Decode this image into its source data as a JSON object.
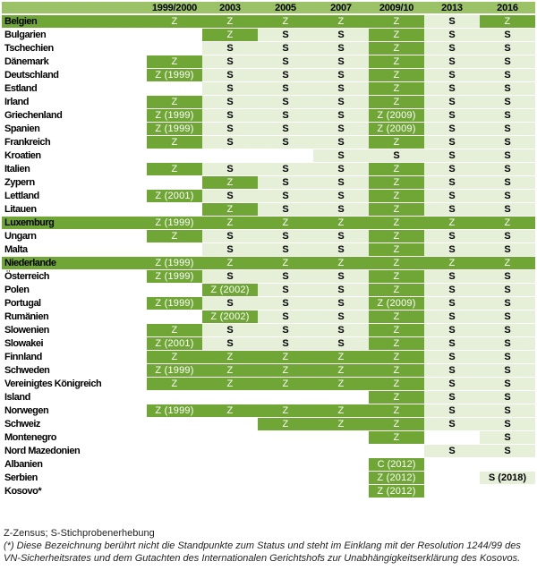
{
  "table": {
    "header": [
      "",
      "1999/2000",
      "2003",
      "2005",
      "2007",
      "2009/10",
      "2013",
      "2016"
    ],
    "rows": [
      {
        "country": "Belgien",
        "band": true,
        "cells": [
          "Z",
          "Z",
          "Z",
          "Z",
          "Z",
          "S",
          "Z"
        ]
      },
      {
        "country": "Bulgarien",
        "band": false,
        "cells": [
          "",
          "Z",
          "S",
          "S",
          "Z",
          "S",
          "S"
        ]
      },
      {
        "country": "Tschechien",
        "band": false,
        "cells": [
          "",
          "S",
          "S",
          "S",
          "Z",
          "S",
          "S"
        ]
      },
      {
        "country": "Dänemark",
        "band": false,
        "cells": [
          "Z",
          "S",
          "S",
          "S",
          "Z",
          "S",
          "S"
        ]
      },
      {
        "country": "Deutschland",
        "band": false,
        "cells": [
          "Z (1999)",
          "S",
          "S",
          "S",
          "Z",
          "S",
          "S"
        ]
      },
      {
        "country": "Estland",
        "band": false,
        "cells": [
          "",
          "S",
          "S",
          "S",
          "Z",
          "S",
          "S"
        ]
      },
      {
        "country": "Irland",
        "band": false,
        "cells": [
          "Z",
          "S",
          "S",
          "S",
          "Z",
          "S",
          "S"
        ]
      },
      {
        "country": "Griechenland",
        "band": false,
        "cells": [
          "Z (1999)",
          "S",
          "S",
          "S",
          "Z (2009)",
          "S",
          "S"
        ]
      },
      {
        "country": "Spanien",
        "band": false,
        "cells": [
          "Z (1999)",
          "S",
          "S",
          "S",
          "Z (2009)",
          "S",
          "S"
        ]
      },
      {
        "country": "Frankreich",
        "band": false,
        "cells": [
          "Z",
          "S",
          "S",
          "S",
          "Z",
          "S",
          "S"
        ]
      },
      {
        "country": "Kroatien",
        "band": false,
        "cells": [
          "",
          "",
          "",
          "S",
          "S",
          "S",
          "S"
        ]
      },
      {
        "country": "Italien",
        "band": false,
        "cells": [
          "Z",
          "S",
          "S",
          "S",
          "Z",
          "S",
          "S"
        ]
      },
      {
        "country": "Zypern",
        "band": false,
        "cells": [
          "",
          "Z",
          "S",
          "S",
          "Z",
          "S",
          "S"
        ]
      },
      {
        "country": "Lettland",
        "band": false,
        "cells": [
          "Z (2001)",
          "S",
          "S",
          "S",
          "Z",
          "S",
          "S"
        ]
      },
      {
        "country": "Litauen",
        "band": false,
        "cells": [
          "",
          "Z",
          "S",
          "S",
          "Z",
          "S",
          "S"
        ]
      },
      {
        "country": "Luxemburg",
        "band": true,
        "cells": [
          "Z (1999)",
          "Z",
          "Z",
          "Z",
          "Z",
          "Z",
          "Z"
        ]
      },
      {
        "country": "Ungarn",
        "band": false,
        "cells": [
          "Z",
          "S",
          "S",
          "S",
          "Z",
          "S",
          "S"
        ]
      },
      {
        "country": "Malta",
        "band": false,
        "cells": [
          "",
          "S",
          "S",
          "S",
          "Z",
          "S",
          "S"
        ]
      },
      {
        "country": "Niederlande",
        "band": true,
        "cells": [
          "Z (1999)",
          "Z",
          "Z",
          "Z",
          "Z",
          "Z",
          "Z"
        ]
      },
      {
        "country": "Österreich",
        "band": false,
        "cells": [
          "Z (1999)",
          "S",
          "S",
          "S",
          "Z",
          "S",
          "S"
        ]
      },
      {
        "country": "Polen",
        "band": false,
        "cells": [
          "",
          "Z (2002)",
          "S",
          "S",
          "Z",
          "S",
          "S"
        ]
      },
      {
        "country": "Portugal",
        "band": false,
        "cells": [
          "Z (1999)",
          "S",
          "S",
          "S",
          "Z (2009)",
          "S",
          "S"
        ]
      },
      {
        "country": "Rumänien",
        "band": false,
        "cells": [
          "",
          "Z (2002)",
          "S",
          "S",
          "Z",
          "S",
          "S"
        ]
      },
      {
        "country": "Slowenien",
        "band": false,
        "cells": [
          "Z",
          "S",
          "S",
          "S",
          "Z",
          "S",
          "S"
        ]
      },
      {
        "country": "Slowakei",
        "band": false,
        "cells": [
          "Z (2001)",
          "S",
          "S",
          "S",
          "Z",
          "S",
          "S"
        ]
      },
      {
        "country": "Finnland",
        "band": false,
        "cells": [
          "Z",
          "Z",
          "Z",
          "Z",
          "Z",
          "S",
          "S"
        ]
      },
      {
        "country": "Schweden",
        "band": false,
        "cells": [
          "Z (1999)",
          "Z",
          "Z",
          "Z",
          "Z",
          "S",
          "S"
        ]
      },
      {
        "country": "Vereinigtes Königreich",
        "band": false,
        "cells": [
          "Z",
          "Z",
          "Z",
          "Z",
          "Z",
          "S",
          "S"
        ]
      },
      {
        "country": "Island",
        "band": false,
        "cells": [
          "",
          "",
          "",
          "",
          "Z",
          "S",
          "S"
        ]
      },
      {
        "country": "Norwegen",
        "band": false,
        "cells": [
          "Z (1999)",
          "Z",
          "Z",
          "Z",
          "Z",
          "S",
          "S"
        ]
      },
      {
        "country": "Schweiz",
        "band": false,
        "cells": [
          "",
          "",
          "Z",
          "Z",
          "Z",
          "S",
          "S"
        ]
      },
      {
        "country": "Montenegro",
        "band": false,
        "cells": [
          "",
          "",
          "",
          "",
          "Z",
          "",
          "S"
        ]
      },
      {
        "country": "Nord Mazedonien",
        "band": false,
        "cells": [
          "",
          "",
          "",
          "",
          "",
          "S",
          "S"
        ]
      },
      {
        "country": "Albanien",
        "band": false,
        "cells": [
          "",
          "",
          "",
          "",
          "C (2012)",
          "",
          ""
        ]
      },
      {
        "country": "Serbien",
        "band": false,
        "cells": [
          "",
          "",
          "",
          "",
          "Z (2012)",
          "",
          "S (2018)"
        ]
      },
      {
        "country": "Kosovo*",
        "band": false,
        "cells": [
          "",
          "",
          "",
          "",
          "Z (2012)",
          "",
          ""
        ]
      }
    ]
  },
  "notes": {
    "legend": "Z-Zensus; S-Stichprobenerhebung",
    "footnote": "(*) Diese Bezeichnung berührt nicht die Standpunkte zum Status und steht im Einklang mit der Resolution 1244/99 des VN-Sicherheitsrates und dem Gutachten des Internationalen Gerichtshofs zur Unabhängigkeitserklärung des Kosovos."
  },
  "colors": {
    "header": "#9bc266",
    "census": "#6fa636",
    "sample": "#e6f0d8",
    "empty": "#ffffff"
  }
}
